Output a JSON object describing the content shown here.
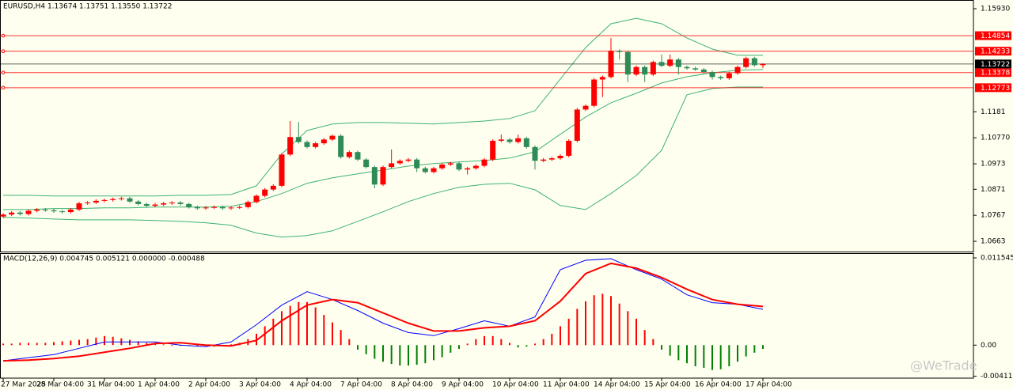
{
  "watermark": "@WeTrade",
  "chart_data": [
    {
      "type": "candlestick",
      "title": "EURUSD,H4  1.13674 1.13751 1.13550 1.13722",
      "categories": [
        "27 Mar 2025",
        null,
        null,
        null,
        null,
        null,
        "28 Mar 04:00",
        null,
        null,
        null,
        null,
        null,
        "31 Mar 04:00",
        null,
        null,
        null,
        null,
        null,
        "1 Apr 04:00",
        null,
        null,
        null,
        null,
        null,
        "2 Apr 04:00",
        null,
        null,
        null,
        null,
        null,
        "3 Apr 04:00",
        null,
        null,
        null,
        null,
        null,
        "4 Apr 04:00",
        null,
        null,
        null,
        null,
        null,
        "7 Apr 04:00",
        null,
        null,
        null,
        null,
        null,
        "8 Apr 04:00",
        null,
        null,
        null,
        null,
        null,
        "9 Apr 04:00",
        null,
        null,
        null,
        null,
        null,
        "10 Apr 04:00",
        null,
        null,
        null,
        null,
        null,
        "11 Apr 04:00",
        null,
        null,
        null,
        null,
        null,
        "14 Apr 04:00",
        null,
        null,
        null,
        null,
        null,
        "15 Apr 04:00",
        null,
        null,
        null,
        null,
        null,
        "16 Apr 04:00",
        null,
        null,
        null,
        null,
        null,
        "17 Apr 04:00"
      ],
      "open": [
        1.0762,
        1.077,
        1.0778,
        1.0772,
        1.0785,
        1.079,
        1.0787,
        1.0783,
        1.078,
        1.079,
        1.0815,
        1.0818,
        1.0825,
        1.0828,
        1.0832,
        1.0835,
        1.0822,
        1.0812,
        1.0805,
        1.081,
        1.0815,
        1.0818,
        1.0812,
        1.08,
        1.0795,
        1.0798,
        1.08,
        1.0795,
        1.0798,
        1.08,
        1.082,
        1.0845,
        1.087,
        1.0885,
        1.101,
        1.108,
        1.106,
        1.104,
        1.1055,
        1.107,
        1.1085,
        1.1,
        1.102,
        1.099,
        1.096,
        1.089,
        1.096,
        1.0975,
        1.0985,
        1.099,
        1.0955,
        1.094,
        1.0955,
        1.097,
        1.0975,
        1.095,
        1.0955,
        1.0965,
        1.099,
        1.1065,
        1.107,
        1.106,
        1.1075,
        1.104,
        1.0985,
        1.099,
        1.0995,
        1.1005,
        1.1065,
        1.119,
        1.1205,
        1.131,
        1.132,
        1.1425,
        1.142,
        1.133,
        1.136,
        1.133,
        1.138,
        1.1365,
        1.139,
        1.136,
        1.1355,
        1.135,
        1.134,
        1.132,
        1.1315,
        1.1335,
        1.136,
        1.1395,
        1.13674
      ],
      "high": [
        1.0776,
        1.0784,
        1.0784,
        1.0791,
        1.0796,
        1.0796,
        1.0793,
        1.0789,
        1.0796,
        1.0821,
        1.0824,
        1.0831,
        1.0834,
        1.0838,
        1.0841,
        1.0841,
        1.0828,
        1.0818,
        1.0816,
        1.0821,
        1.0824,
        1.0824,
        1.0818,
        1.0806,
        1.0804,
        1.0806,
        1.0806,
        1.0804,
        1.0806,
        1.0826,
        1.0851,
        1.0876,
        1.0891,
        1.1016,
        1.1144,
        1.114,
        1.1066,
        1.1061,
        1.1076,
        1.1091,
        1.1091,
        1.1026,
        1.1026,
        1.0996,
        1.0966,
        1.0966,
        1.103,
        1.0991,
        1.0996,
        1.0996,
        1.0961,
        1.0961,
        1.0976,
        1.0981,
        1.0981,
        1.0961,
        1.0971,
        1.0996,
        1.1071,
        1.109,
        1.1076,
        1.109,
        1.1081,
        1.1046,
        1.0996,
        1.1001,
        1.1011,
        1.1071,
        1.1196,
        1.1211,
        1.1316,
        1.1326,
        1.1476,
        1.1431,
        1.1426,
        1.1366,
        1.1366,
        1.1386,
        1.141,
        1.141,
        1.1396,
        1.1366,
        1.1361,
        1.1356,
        1.1346,
        1.1326,
        1.1341,
        1.1366,
        1.1401,
        1.1401,
        1.13751
      ],
      "low": [
        1.0756,
        1.0764,
        1.0766,
        1.0766,
        1.0779,
        1.0781,
        1.0777,
        1.0774,
        1.0774,
        1.0784,
        1.0809,
        1.0812,
        1.0819,
        1.0822,
        1.0826,
        1.0816,
        1.0806,
        1.0799,
        1.0799,
        1.0804,
        1.0809,
        1.0806,
        1.0794,
        1.0789,
        1.0789,
        1.0792,
        1.0789,
        1.0789,
        1.0792,
        1.0794,
        1.0814,
        1.0839,
        1.0864,
        1.0879,
        1.1004,
        1.1054,
        1.1034,
        1.1034,
        1.1049,
        1.1064,
        1.0994,
        1.0994,
        1.0984,
        1.0954,
        1.0875,
        1.0884,
        1.0954,
        1.0969,
        1.0979,
        1.094,
        1.0934,
        1.0934,
        1.0949,
        1.0964,
        1.0944,
        1.093,
        1.0949,
        1.0959,
        1.0984,
        1.1059,
        1.1054,
        1.1054,
        1.1034,
        1.095,
        1.0979,
        1.0984,
        1.0989,
        1.0999,
        1.1059,
        1.1184,
        1.1199,
        1.124,
        1.1314,
        1.139,
        1.13,
        1.1324,
        1.13,
        1.1324,
        1.1359,
        1.1359,
        1.133,
        1.1349,
        1.1344,
        1.1334,
        1.131,
        1.1309,
        1.1309,
        1.1329,
        1.1354,
        1.1361,
        1.1355
      ],
      "close": [
        1.077,
        1.0778,
        1.0772,
        1.0785,
        1.079,
        1.0787,
        1.0783,
        1.078,
        1.079,
        1.0815,
        1.0818,
        1.0825,
        1.0828,
        1.0832,
        1.0835,
        1.0822,
        1.0812,
        1.0805,
        1.081,
        1.0815,
        1.0818,
        1.0812,
        1.08,
        1.0795,
        1.0798,
        1.08,
        1.0795,
        1.0798,
        1.08,
        1.082,
        1.0845,
        1.087,
        1.0885,
        1.101,
        1.108,
        1.106,
        1.104,
        1.1055,
        1.107,
        1.1085,
        1.1,
        1.102,
        1.099,
        1.096,
        1.089,
        1.096,
        1.0975,
        1.0985,
        1.099,
        1.0955,
        1.094,
        1.0955,
        1.097,
        1.0975,
        1.095,
        1.0955,
        1.0965,
        1.099,
        1.1065,
        1.107,
        1.106,
        1.1075,
        1.104,
        1.0985,
        1.099,
        1.0995,
        1.1005,
        1.1065,
        1.119,
        1.1205,
        1.131,
        1.132,
        1.1425,
        1.142,
        1.133,
        1.136,
        1.133,
        1.138,
        1.1365,
        1.139,
        1.136,
        1.1355,
        1.135,
        1.134,
        1.132,
        1.1315,
        1.1335,
        1.136,
        1.1395,
        1.13674,
        1.13722
      ],
      "up_color": "#ff0000",
      "down_color": "#2e8b57",
      "bands": {
        "color": "#3cb371",
        "x": [
          0,
          3,
          6,
          9,
          12,
          15,
          18,
          21,
          24,
          27,
          30,
          33,
          36,
          39,
          42,
          45,
          48,
          51,
          54,
          57,
          60,
          63,
          66,
          69,
          72,
          75,
          78,
          81,
          84,
          87,
          90
        ],
        "series": [
          {
            "values": [
              1.0847,
              1.0847,
              1.0844,
              1.0844,
              1.0844,
              1.0844,
              1.0844,
              1.0847,
              1.0847,
              1.085,
              1.0885,
              1.1012,
              1.1106,
              1.1132,
              1.1138,
              1.1138,
              1.1135,
              1.1132,
              1.1138,
              1.1144,
              1.1154,
              1.1185,
              1.1312,
              1.1438,
              1.1533,
              1.1555,
              1.1533,
              1.1476,
              1.1432,
              1.1407,
              1.1407
            ]
          },
          {
            "values": [
              1.079,
              1.079,
              1.0794,
              1.0794,
              1.0797,
              1.0797,
              1.08,
              1.08,
              1.08,
              1.0803,
              1.0822,
              1.0854,
              1.0895,
              1.0917,
              1.0933,
              1.0948,
              1.0964,
              1.0974,
              1.098,
              1.0986,
              1.0996,
              1.1021,
              1.1091,
              1.116,
              1.1217,
              1.1255,
              1.1296,
              1.1321,
              1.1337,
              1.1347,
              1.135
            ]
          },
          {
            "values": [
              1.0759,
              1.0756,
              1.0752,
              1.0749,
              1.0749,
              1.0749,
              1.0746,
              1.0743,
              1.0737,
              1.0727,
              1.0696,
              1.068,
              1.0686,
              1.0705,
              1.0743,
              1.0781,
              1.0822,
              1.0854,
              1.0879,
              1.0891,
              1.0895,
              1.0869,
              1.0806,
              1.079,
              1.0854,
              1.0926,
              1.1027,
              1.1249,
              1.1274,
              1.128,
              1.128
            ]
          }
        ]
      },
      "levels": [
        {
          "value": 1.14854,
          "color": "#ff0000"
        },
        {
          "value": 1.14233,
          "color": "#ff0000"
        },
        {
          "value": 1.13378,
          "color": "#ff0000"
        },
        {
          "value": 1.12773,
          "color": "#ff0000"
        }
      ],
      "current_price": {
        "value": 1.13722,
        "color": "#000000"
      },
      "ylim": [
        1.0622,
        1.1628
      ],
      "yticks": [
        {
          "value": 1.1593,
          "label": "1.15930"
        },
        1.1181,
        {
          "value": 1.1077,
          "label": "1.10770"
        },
        1.0973,
        1.0871,
        1.0767,
        1.0663
      ]
    },
    {
      "type": "macd",
      "title": "MACD(12,26,9) 0.004745 0.005121 0.000000 -0.000488",
      "x": [
        0,
        3,
        6,
        9,
        12,
        15,
        18,
        21,
        24,
        27,
        30,
        33,
        36,
        39,
        42,
        45,
        48,
        51,
        54,
        57,
        60,
        63,
        66,
        69,
        72,
        75,
        78,
        81,
        84,
        87,
        90
      ],
      "series": [
        {
          "color": "#0000ff",
          "values": [
            -0.00208,
            -0.00166,
            -0.00125,
            -0.00042,
            0.00042,
            0.00042,
            0.00042,
            0,
            -0.00021,
            0.00042,
            0.0027,
            0.0053,
            0.00707,
            0.00603,
            0.00458,
            0.00291,
            0.00166,
            0.00125,
            0.00218,
            0.00322,
            0.0025,
            0.00374,
            0.00999,
            0.01123,
            0.01144,
            0.00999,
            0.00874,
            0.00666,
            0.00562,
            0.00541,
            0.004745
          ]
        },
        {
          "color": "#ff0000",
          "values": [
            -0.00208,
            -0.00198,
            -0.00177,
            -0.00146,
            -0.00094,
            -0.00042,
            0.00021,
            0.00031,
            0,
            -0.0001,
            0.00062,
            0.00322,
            0.0053,
            0.00603,
            0.00562,
            0.00426,
            0.00291,
            0.00187,
            0.00187,
            0.00229,
            0.0025,
            0.00322,
            0.00582,
            0.00947,
            0.01082,
            0.01019,
            0.00895,
            0.00739,
            0.00603,
            0.00541,
            0.005121
          ]
        }
      ],
      "histogram": {
        "up_color": "#ff0000",
        "down_color": "#008000",
        "values": [
          0.0002,
          0.0002,
          0.0003,
          0.0003,
          0.0003,
          0.0003,
          0.0004,
          0.0005,
          0.0006,
          0.0007,
          0.0008,
          0.001,
          0.0012,
          0.0011,
          0.0009,
          0.0007,
          0.0005,
          0.0003,
          0.0002,
          0.0001,
          0,
          -0.0001,
          -0.0001,
          -0.0001,
          -0.0001,
          -0.0002,
          -0.0001,
          0.0001,
          0.0003,
          0.0008,
          0.0015,
          0.0025,
          0.0035,
          0.0045,
          0.0052,
          0.0057,
          0.0057,
          0.005,
          0.004,
          0.003,
          0.002,
          0.0008,
          -0.0006,
          -0.0012,
          -0.0018,
          -0.0022,
          -0.0025,
          -0.0027,
          -0.0027,
          -0.0026,
          -0.0024,
          -0.002,
          -0.0016,
          -0.001,
          -0.0005,
          0.0002,
          0.0008,
          0.0012,
          0.0012,
          0.0008,
          0.0003,
          -0.0003,
          -0.0002,
          0.0002,
          0.0008,
          0.0015,
          0.0025,
          0.0035,
          0.0048,
          0.0058,
          0.0066,
          0.0068,
          0.0065,
          0.0055,
          0.0045,
          0.0035,
          0.002,
          0.0008,
          -0.0006,
          -0.0014,
          -0.002,
          -0.0024,
          -0.0028,
          -0.003,
          -0.0033,
          -0.0032,
          -0.0028,
          -0.0022,
          -0.0015,
          -0.001,
          -0.0005
        ]
      },
      "ylim": [
        -0.00437,
        0.01207
      ],
      "yticks": [
        0.011545,
        {
          "value": 0,
          "label": "0.00"
        },
        -0.004115
      ]
    }
  ]
}
